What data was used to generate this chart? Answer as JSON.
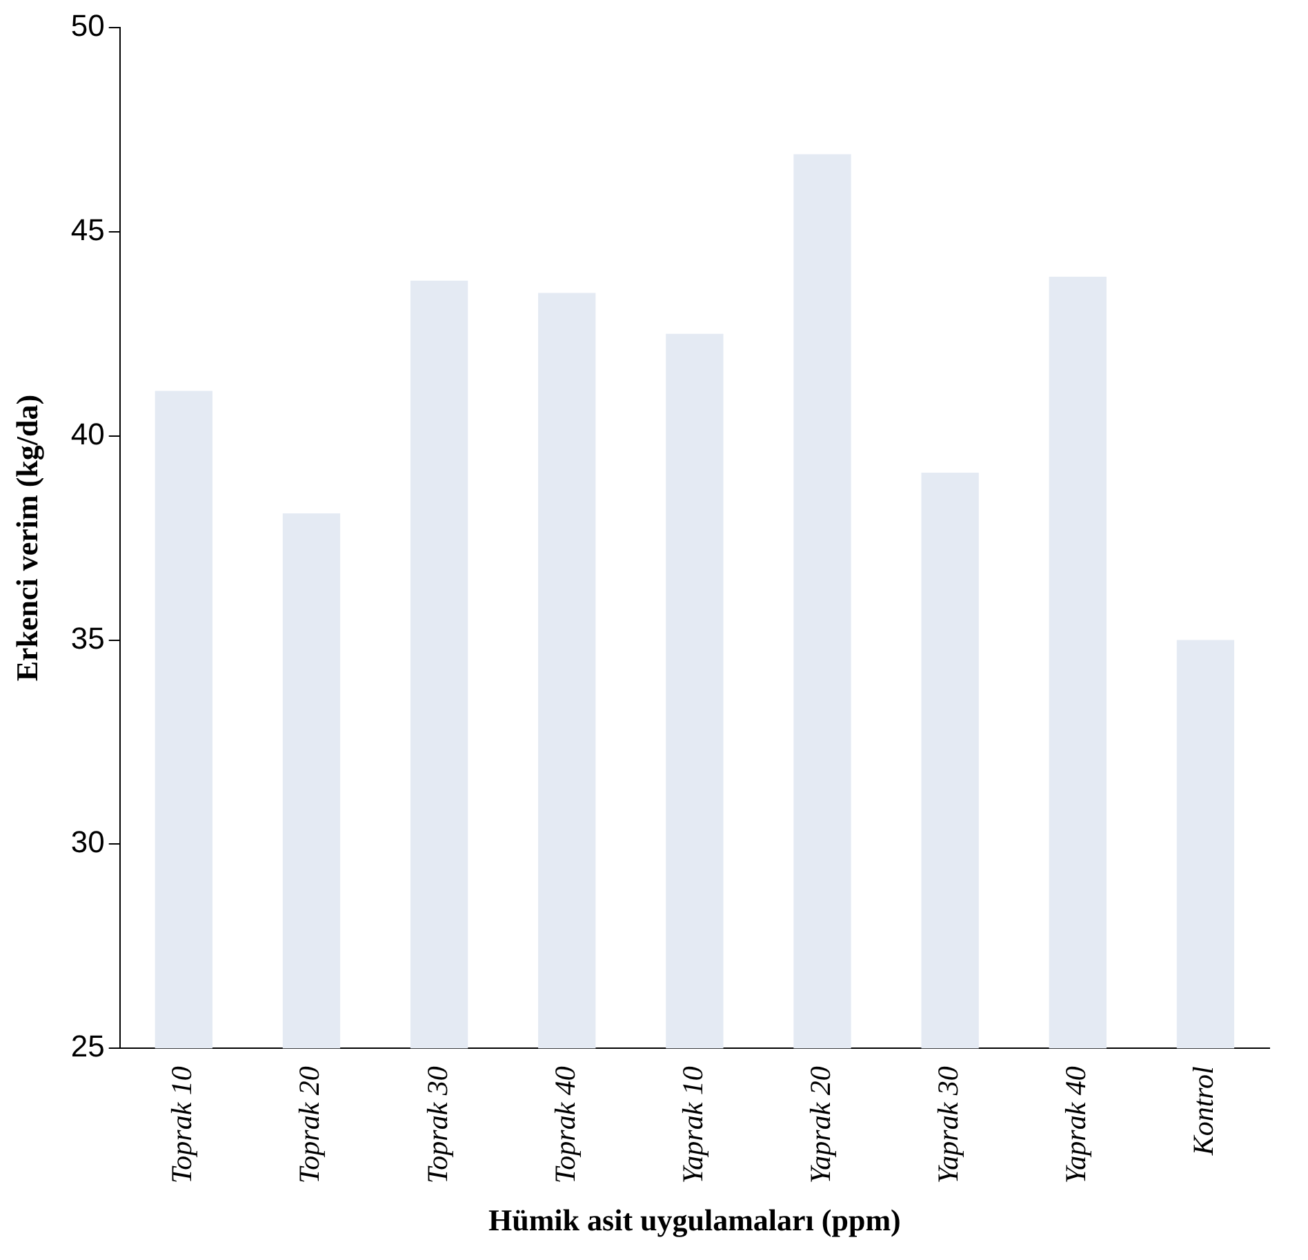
{
  "chart_data": {
    "type": "bar",
    "xlabel": "Hümik asit uygulamaları (ppm)",
    "ylabel": "Erkenci verim (kg/da)",
    "categories": [
      "Toprak 10",
      "Toprak 20",
      "Toprak 30",
      "Toprak 40",
      "Yaprak 10",
      "Yaprak 20",
      "Yaprak 30",
      "Yaprak 40",
      "Kontrol"
    ],
    "values": [
      41.1,
      38.1,
      43.8,
      43.5,
      42.5,
      46.9,
      39.1,
      43.9,
      35.0
    ],
    "color": "#e4eaf3",
    "ylim": [
      25,
      50
    ],
    "yticks": [
      25,
      30,
      35,
      40,
      45,
      50
    ],
    "grid": false,
    "legend": false
  }
}
